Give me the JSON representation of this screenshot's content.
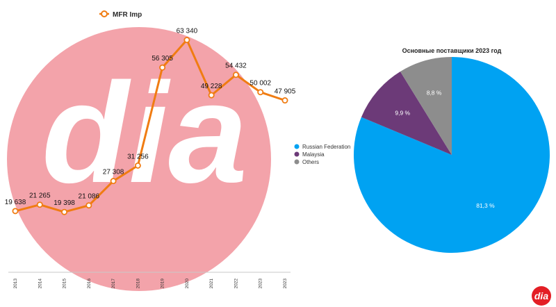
{
  "chart_data": [
    {
      "type": "line",
      "title": "",
      "xlabel": "",
      "ylabel": "",
      "legend_position": "top-left",
      "categories": [
        "2013",
        "2014",
        "2015",
        "2016",
        "2017",
        "2018",
        "2019",
        "2020",
        "2021",
        "2022",
        "2023",
        "2023"
      ],
      "series": [
        {
          "name": "MFR Imp",
          "color": "#f07c12",
          "values": [
            19638,
            21265,
            19398,
            21086,
            27308,
            31256,
            56305,
            63340,
            49228,
            54432,
            50002,
            47905
          ],
          "labels": [
            "19 638",
            "21 265",
            "19 398",
            "21 086",
            "27 308",
            "31 256",
            "56 305",
            "63 340",
            "49 228",
            "54 432",
            "50 002",
            "47 905"
          ]
        }
      ],
      "ylim": [
        15000,
        70000
      ],
      "grid": false
    },
    {
      "type": "pie",
      "title": "Основные поставщики 2023 год",
      "legend_position": "left",
      "slices": [
        {
          "name": "Russian Federation",
          "value": 81.3,
          "label": "81,3 %",
          "color": "#00a2f2"
        },
        {
          "name": "Malaysia",
          "value": 9.9,
          "label": "9,9 %",
          "color": "#6c3a78"
        },
        {
          "name": "Others",
          "value": 8.8,
          "label": "8,8 %",
          "color": "#8d8d8d"
        }
      ]
    }
  ],
  "watermark": {
    "text": "dia",
    "circle_color": "#f3a3aa",
    "letter_color": "#ffffff"
  },
  "brand_logo": {
    "text": "dia",
    "color": "#e31e25"
  }
}
